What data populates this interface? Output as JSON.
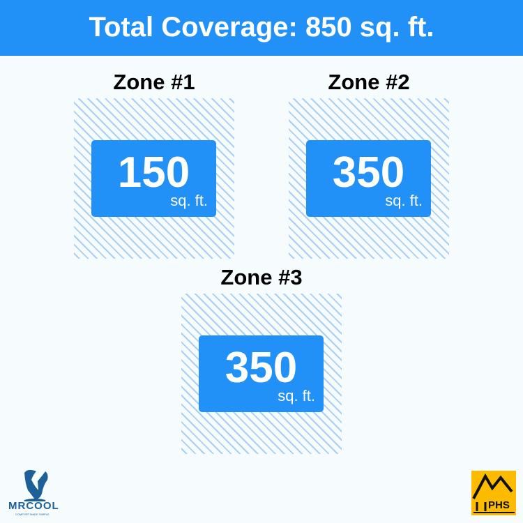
{
  "header": {
    "title": "Total Coverage: 850 sq. ft."
  },
  "zones": [
    {
      "title": "Zone #1",
      "value": "150",
      "unit": "sq. ft."
    },
    {
      "title": "Zone #2",
      "value": "350",
      "unit": "sq. ft."
    },
    {
      "title": "Zone #3",
      "value": "350",
      "unit": "sq. ft."
    }
  ],
  "logos": {
    "left": "MRCOOL",
    "left_tagline": "COMFORT MADE SIMPLE",
    "right": "PHS"
  },
  "colors": {
    "accent": "#2190f7",
    "hatch": "#a9cff4",
    "phs": "#fdbb00"
  }
}
